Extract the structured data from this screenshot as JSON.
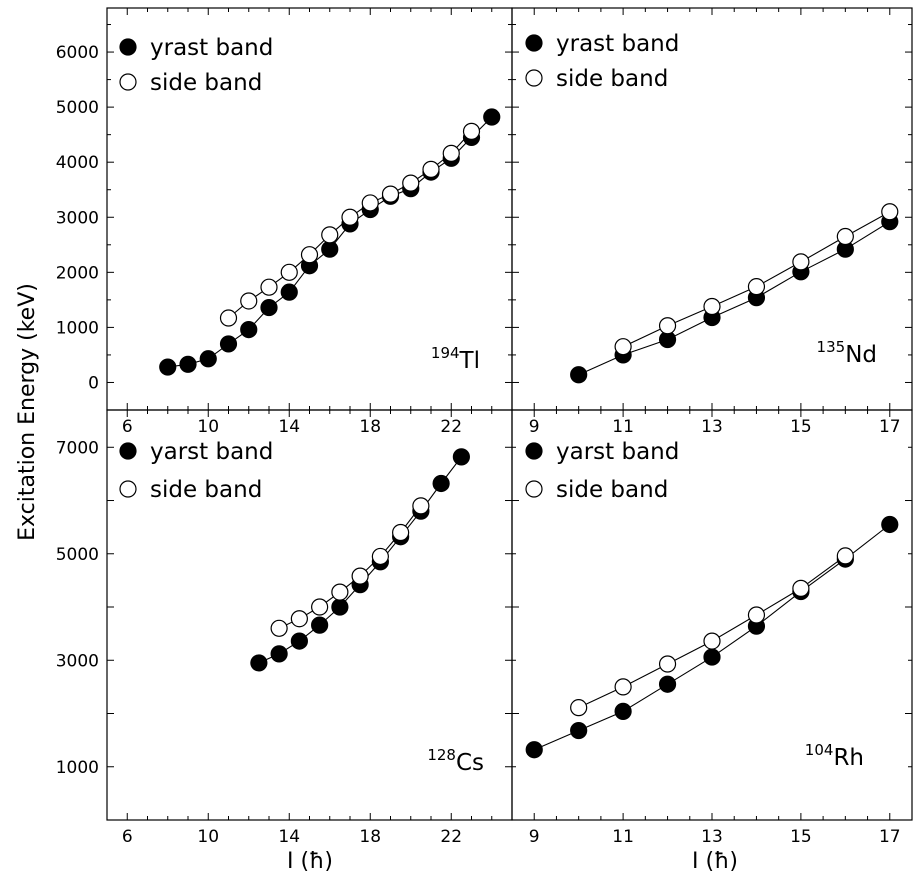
{
  "figure": {
    "ylabel": "Excitation Energy (keV)",
    "xlabel": "I (ħ)"
  },
  "chart_data": [
    {
      "type": "line",
      "panel": "top-left",
      "nucleus_mass": "194",
      "nucleus_symbol": "Tl",
      "xlim": [
        5,
        25
      ],
      "ylim": [
        -500,
        6800
      ],
      "xticks": [
        6,
        10,
        14,
        18,
        22
      ],
      "yticks": [
        0,
        1000,
        2000,
        3000,
        4000,
        5000,
        6000
      ],
      "legend": [
        "yrast band",
        "side band"
      ],
      "legend_position": "top-left",
      "series": [
        {
          "name": "yrast band",
          "marker": "filled-circle",
          "x": [
            8,
            9,
            10,
            11,
            12,
            13,
            14,
            15,
            16,
            17,
            18,
            19,
            20,
            21,
            22,
            23,
            24
          ],
          "y": [
            280,
            330,
            430,
            700,
            960,
            1360,
            1640,
            2120,
            2420,
            2880,
            3140,
            3380,
            3520,
            3820,
            4070,
            4450,
            4820
          ]
        },
        {
          "name": "side band",
          "marker": "open-circle",
          "x": [
            11,
            12,
            13,
            14,
            15,
            16,
            17,
            18,
            19,
            20,
            21,
            22,
            23
          ],
          "y": [
            1170,
            1480,
            1730,
            2000,
            2320,
            2680,
            3000,
            3260,
            3420,
            3620,
            3870,
            4160,
            4560
          ]
        }
      ]
    },
    {
      "type": "line",
      "panel": "top-right",
      "nucleus_mass": "135",
      "nucleus_symbol": "Nd",
      "xlim": [
        8.5,
        17.5
      ],
      "ylim": [
        -500,
        6800
      ],
      "xticks": [
        9,
        11,
        13,
        15,
        17
      ],
      "legend": [
        "yrast band",
        "side band"
      ],
      "legend_position": "top-left",
      "series": [
        {
          "name": "yrast band",
          "marker": "filled-circle",
          "x": [
            10,
            11,
            12,
            13,
            14,
            15,
            16,
            17
          ],
          "y": [
            140,
            500,
            780,
            1180,
            1540,
            2010,
            2420,
            2920
          ]
        },
        {
          "name": "side band",
          "marker": "open-circle",
          "x": [
            11,
            12,
            13,
            14,
            15,
            16,
            17
          ],
          "y": [
            650,
            1030,
            1380,
            1740,
            2190,
            2650,
            3100
          ]
        }
      ]
    },
    {
      "type": "line",
      "panel": "bottom-left",
      "nucleus_mass": "128",
      "nucleus_symbol": "Cs",
      "xlim": [
        5,
        25
      ],
      "ylim": [
        0,
        7700
      ],
      "xticks": [
        6,
        10,
        14,
        18,
        22
      ],
      "yticks": [
        1000,
        3000,
        5000,
        7000
      ],
      "legend": [
        "yarst band",
        "side band"
      ],
      "legend_position": "top-left",
      "series": [
        {
          "name": "yarst band",
          "marker": "filled-circle",
          "x": [
            12.5,
            13.5,
            14.5,
            15.5,
            16.5,
            17.5,
            18.5,
            19.5,
            20.5,
            21.5,
            22.5
          ],
          "y": [
            2950,
            3120,
            3360,
            3660,
            4000,
            4420,
            4850,
            5320,
            5800,
            6320,
            6820
          ]
        },
        {
          "name": "side band",
          "marker": "open-circle",
          "x": [
            13.5,
            14.5,
            15.5,
            16.5,
            17.5,
            18.5,
            19.5,
            20.5
          ],
          "y": [
            3600,
            3780,
            4000,
            4280,
            4580,
            4950,
            5400,
            5900
          ]
        }
      ]
    },
    {
      "type": "line",
      "panel": "bottom-right",
      "nucleus_mass": "104",
      "nucleus_symbol": "Rh",
      "xlim": [
        8.5,
        17.5
      ],
      "ylim": [
        0,
        7700
      ],
      "xticks": [
        9,
        11,
        13,
        15,
        17
      ],
      "legend": [
        "yarst band",
        "side band"
      ],
      "legend_position": "top-left",
      "series": [
        {
          "name": "yarst band",
          "marker": "filled-circle",
          "x": [
            9,
            10,
            11,
            12,
            13,
            14,
            15,
            16,
            17
          ],
          "y": [
            1320,
            1680,
            2040,
            2550,
            3060,
            3640,
            4290,
            4900,
            5550
          ]
        },
        {
          "name": "side band",
          "marker": "open-circle",
          "x": [
            10,
            11,
            12,
            13,
            14,
            15,
            16
          ],
          "y": [
            2110,
            2500,
            2930,
            3360,
            3850,
            4350,
            4960
          ]
        }
      ]
    }
  ]
}
